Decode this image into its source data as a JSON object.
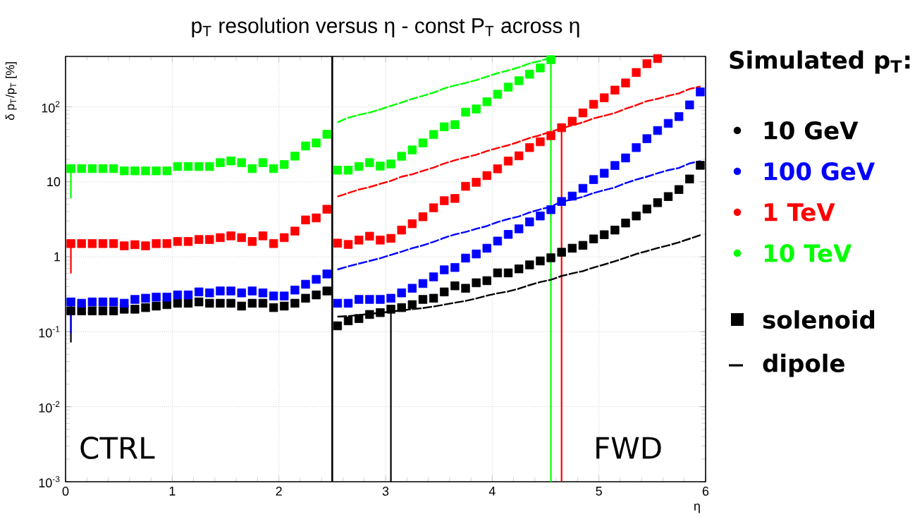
{
  "chart_data": {
    "type": "scatter",
    "title": "p$_{T}$ resolution versus η - const P$_{T}$ across η",
    "xlabel": "η",
    "ylabel": "δ p$_{T}$/p$_{T}$ [%]",
    "legend_title": "Simulated p$_{T}$:",
    "annotations": [
      "CTRL",
      "FWD",
      "solenoid",
      "dipole"
    ],
    "log": "y",
    "grid": true,
    "legend": "right",
    "xlim": [
      0,
      6
    ],
    "xticks": [
      0,
      1,
      2,
      3,
      4,
      5,
      6
    ],
    "ylim": [
      0.001,
      470
    ],
    "yticks": [
      {
        "value": 0.001,
        "label": "10$^{-3}$"
      },
      {
        "value": 0.01,
        "label": "10$^{-2}$"
      },
      {
        "value": 0.1,
        "label": "10$^{-1}$"
      },
      1,
      10,
      {
        "value": 100,
        "label": "10$^{2}$"
      }
    ],
    "ref_lines": [
      {
        "axis": "x",
        "value": 2.5,
        "color": "#000000"
      }
    ],
    "x": [
      0.05,
      0.15,
      0.25,
      0.35,
      0.45,
      0.55,
      0.65,
      0.75,
      0.85,
      0.95,
      1.05,
      1.15,
      1.25,
      1.35,
      1.45,
      1.55,
      1.65,
      1.75,
      1.85,
      1.95,
      2.05,
      2.15,
      2.25,
      2.35,
      2.45,
      2.55,
      2.65,
      2.75,
      2.85,
      2.95,
      3.05,
      3.15,
      3.25,
      3.35,
      3.45,
      3.55,
      3.65,
      3.75,
      3.85,
      3.95,
      4.05,
      4.15,
      4.25,
      4.35,
      4.45,
      4.55,
      4.65,
      4.75,
      4.85,
      4.95,
      5.05,
      5.15,
      5.25,
      5.35,
      5.45,
      5.55,
      5.65,
      5.75,
      5.85,
      5.95
    ],
    "series": [
      {
        "name": "10 GeV",
        "color": "#000000",
        "marker": "square",
        "values": [
          0.19,
          0.19,
          0.19,
          0.19,
          0.19,
          0.2,
          0.2,
          0.21,
          0.22,
          0.23,
          0.24,
          0.24,
          0.25,
          0.24,
          0.24,
          0.24,
          0.22,
          0.24,
          0.24,
          0.21,
          0.22,
          0.24,
          0.28,
          0.31,
          0.35,
          0.12,
          0.14,
          0.15,
          0.17,
          0.18,
          0.2,
          0.21,
          0.23,
          0.27,
          0.28,
          0.34,
          0.41,
          0.38,
          0.45,
          0.48,
          0.61,
          0.61,
          0.69,
          0.78,
          0.88,
          0.97,
          1.15,
          1.3,
          1.42,
          1.73,
          1.97,
          2.27,
          2.82,
          3.5,
          4.34,
          5.27,
          6.35,
          7.88,
          10.9,
          16.6
        ],
        "errors": [
          [
            0.072,
            0.19
          ],
          null,
          null,
          null,
          null,
          null,
          null,
          null,
          null,
          null,
          null,
          null,
          null,
          null,
          null,
          null,
          null,
          null,
          null,
          null,
          null,
          null,
          null,
          null,
          null,
          null,
          null,
          null,
          null,
          null,
          [
            0.001,
            0.2
          ],
          null,
          null,
          null,
          null,
          null,
          null,
          null,
          null,
          null,
          null,
          null,
          null,
          null,
          null,
          null,
          null,
          null,
          null,
          null,
          null,
          null,
          null,
          null,
          null,
          null,
          null,
          null,
          null,
          null
        ]
      },
      {
        "name": "100 GeV",
        "color": "#0000ff",
        "marker": "square",
        "values": [
          0.25,
          0.24,
          0.25,
          0.25,
          0.25,
          0.24,
          0.27,
          0.28,
          0.29,
          0.29,
          0.31,
          0.31,
          0.34,
          0.33,
          0.35,
          0.35,
          0.33,
          0.35,
          0.33,
          0.3,
          0.3,
          0.36,
          0.43,
          0.5,
          0.59,
          0.24,
          0.24,
          0.27,
          0.27,
          0.27,
          0.28,
          0.33,
          0.38,
          0.44,
          0.54,
          0.67,
          0.72,
          0.96,
          1.09,
          1.3,
          1.62,
          1.99,
          2.36,
          2.92,
          3.5,
          4.25,
          5.46,
          6.45,
          8.18,
          10.7,
          13.0,
          16.5,
          20.8,
          28.6,
          37.6,
          48.3,
          60.1,
          74.1,
          106,
          158
        ],
        "errors": [
          [
            0.096,
            0.25
          ],
          null,
          null,
          null,
          null,
          null,
          null,
          null,
          null,
          null,
          null,
          null,
          null,
          null,
          null,
          null,
          null,
          null,
          null,
          null,
          null,
          null,
          null,
          null,
          null,
          null,
          null,
          null,
          null,
          null,
          null,
          null,
          null,
          null,
          null,
          null,
          null,
          null,
          null,
          null,
          null,
          null,
          null,
          null,
          null,
          null,
          null,
          null,
          null,
          null,
          null,
          null,
          null,
          null,
          null,
          null,
          null,
          null,
          null,
          null
        ]
      },
      {
        "name": "1 TeV",
        "color": "#ff0000",
        "marker": "square",
        "values": [
          1.5,
          1.5,
          1.5,
          1.5,
          1.5,
          1.4,
          1.45,
          1.4,
          1.5,
          1.5,
          1.6,
          1.6,
          1.7,
          1.7,
          1.8,
          1.9,
          1.8,
          1.6,
          1.9,
          1.5,
          1.8,
          2.2,
          3.1,
          3.3,
          4.3,
          1.52,
          1.46,
          1.67,
          1.88,
          1.67,
          1.76,
          2.27,
          2.76,
          3.42,
          4.5,
          5.6,
          6.0,
          8.7,
          9.85,
          12.1,
          14.9,
          18.9,
          22.2,
          28.6,
          34.2,
          41.2,
          52.7,
          64.3,
          83,
          108,
          132,
          167,
          208,
          287,
          376,
          440,
          null,
          null,
          null,
          null
        ],
        "errors": [
          [
            0.6,
            1.5
          ],
          null,
          null,
          null,
          null,
          null,
          null,
          null,
          null,
          null,
          null,
          null,
          null,
          null,
          null,
          null,
          null,
          null,
          null,
          null,
          null,
          null,
          null,
          null,
          null,
          null,
          null,
          null,
          null,
          null,
          null,
          null,
          null,
          null,
          null,
          null,
          null,
          null,
          null,
          null,
          null,
          null,
          null,
          null,
          null,
          null,
          [
            0.001,
            52.7
          ],
          null,
          null,
          null,
          null,
          null,
          null,
          null,
          null,
          null,
          null,
          null,
          null,
          null
        ]
      },
      {
        "name": "10 TeV",
        "color": "#00ff00",
        "marker": "square",
        "values": [
          15,
          15,
          15,
          15,
          15,
          14,
          14,
          14,
          14,
          14,
          16,
          16,
          16,
          16,
          18,
          19,
          18,
          15,
          18,
          15,
          17,
          22,
          30,
          33,
          43,
          14.3,
          14.3,
          16.0,
          18.0,
          16.2,
          17.3,
          21.9,
          26.6,
          33.0,
          42.7,
          54.1,
          57.8,
          84.8,
          93.6,
          117,
          147,
          183,
          223,
          272,
          330,
          425,
          null,
          null,
          null,
          null,
          null,
          null,
          null,
          null,
          null,
          null,
          null,
          null,
          null,
          null
        ],
        "errors": [
          [
            6.0,
            15
          ],
          null,
          null,
          null,
          null,
          null,
          null,
          null,
          null,
          null,
          null,
          null,
          null,
          null,
          null,
          null,
          null,
          null,
          null,
          null,
          null,
          null,
          null,
          null,
          null,
          null,
          null,
          null,
          null,
          null,
          null,
          null,
          null,
          null,
          null,
          null,
          null,
          null,
          null,
          null,
          null,
          null,
          null,
          null,
          null,
          [
            0.001,
            470
          ],
          null,
          null,
          null,
          null,
          null,
          null,
          null,
          null,
          null,
          null,
          null,
          null,
          null,
          null
        ]
      },
      {
        "color": "#000000",
        "type": "line",
        "line_style": "dashed",
        "marker": "none",
        "x": [
          2.55,
          2.65,
          2.75,
          2.85,
          2.95,
          3.05,
          3.15,
          3.25,
          3.35,
          3.45,
          3.55,
          3.65,
          3.75,
          3.85,
          3.95,
          4.05,
          4.15,
          4.25,
          4.35,
          4.45,
          4.55,
          4.65,
          4.75,
          4.85,
          4.95,
          5.05,
          5.15,
          5.25,
          5.35,
          5.45,
          5.55,
          5.65,
          5.75,
          5.85,
          5.95
        ],
        "values": [
          0.159,
          0.162,
          0.167,
          0.173,
          0.179,
          0.186,
          0.193,
          0.2,
          0.207,
          0.217,
          0.23,
          0.244,
          0.258,
          0.278,
          0.303,
          0.326,
          0.345,
          0.376,
          0.419,
          0.46,
          0.494,
          0.555,
          0.6,
          0.645,
          0.719,
          0.789,
          0.873,
          0.97,
          1.09,
          1.19,
          1.31,
          1.42,
          1.56,
          1.74,
          1.94
        ]
      },
      {
        "color": "#0000ff",
        "type": "line",
        "line_style": "dashed",
        "marker": "none",
        "x": [
          2.55,
          2.65,
          2.75,
          2.85,
          2.95,
          3.05,
          3.15,
          3.25,
          3.35,
          3.45,
          3.55,
          3.65,
          3.75,
          3.85,
          3.95,
          4.05,
          4.15,
          4.25,
          4.35,
          4.45,
          4.55,
          4.65,
          4.75,
          4.85,
          4.95,
          5.05,
          5.15,
          5.25,
          5.35,
          5.45,
          5.55,
          5.65,
          5.75,
          5.85,
          5.95
        ],
        "values": [
          0.678,
          0.744,
          0.811,
          0.879,
          0.958,
          1.06,
          1.17,
          1.3,
          1.42,
          1.58,
          1.79,
          1.99,
          2.14,
          2.36,
          2.57,
          2.9,
          3.19,
          3.45,
          3.9,
          4.28,
          4.66,
          5.46,
          5.78,
          6.31,
          7.09,
          7.74,
          8.42,
          9.6,
          10.7,
          11.7,
          13.0,
          14.3,
          15.3,
          17.6,
          18.9
        ]
      },
      {
        "color": "#ff0000",
        "type": "line",
        "line_style": "dashed",
        "marker": "none",
        "x": [
          2.55,
          2.65,
          2.75,
          2.85,
          2.95,
          3.05,
          3.15,
          3.25,
          3.35,
          3.45,
          3.55,
          3.65,
          3.75,
          3.85,
          3.95,
          4.05,
          4.15,
          4.25,
          4.35,
          4.45,
          4.55,
          4.65,
          4.75,
          4.85,
          4.95,
          5.05,
          5.15,
          5.25,
          5.35,
          5.45,
          5.55,
          5.65,
          5.75,
          5.85,
          5.95
        ],
        "values": [
          6.35,
          7.09,
          7.88,
          8.5,
          9.38,
          10.3,
          11.7,
          12.6,
          14.0,
          15.5,
          17.5,
          19.4,
          21.1,
          23.0,
          25.7,
          28.2,
          30.7,
          34.2,
          38.5,
          42.0,
          46.7,
          51.6,
          56.7,
          62.1,
          70.1,
          76,
          83,
          94.4,
          105,
          119,
          128,
          140,
          151,
          173,
          187
        ]
      },
      {
        "color": "#00ff00",
        "type": "line",
        "line_style": "dashed",
        "marker": "none",
        "x": [
          2.55,
          2.65,
          2.75,
          2.85,
          2.95,
          3.05,
          3.15,
          3.25,
          3.35,
          3.45,
          3.55,
          3.65,
          3.75,
          3.85,
          3.95,
          4.05,
          4.15,
          4.25,
          4.35,
          4.45,
          4.55
        ],
        "values": [
          62.1,
          71.5,
          78.1,
          83.9,
          92.5,
          103,
          114,
          128,
          140,
          155,
          176,
          193,
          208,
          227,
          253,
          281,
          305,
          337,
          380,
          409,
          455
        ]
      }
    ]
  }
}
